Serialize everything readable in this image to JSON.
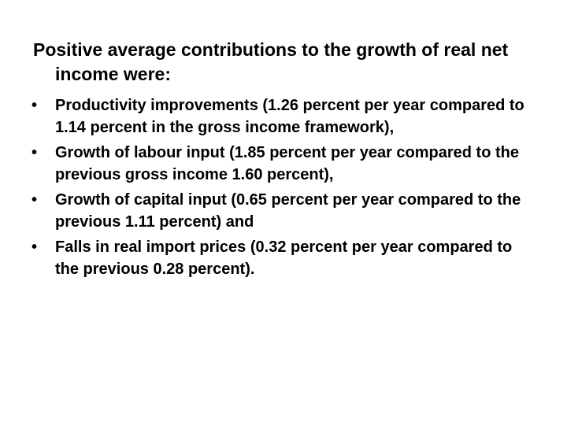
{
  "slide": {
    "heading": "Positive average contributions to the growth of real net income were:",
    "bullet_symbol": "•",
    "bullets": [
      "Productivity improvements (1.26 percent per year compared to 1.14 percent in the gross income framework),",
      "Growth of labour input (1.85 percent per year compared to the previous gross income 1.60 percent),",
      "Growth of capital input (0.65 percent per year compared to the previous 1.11 percent) and",
      "Falls in real import prices (0.32 percent per year compared to the previous 0.28 percent)."
    ]
  }
}
